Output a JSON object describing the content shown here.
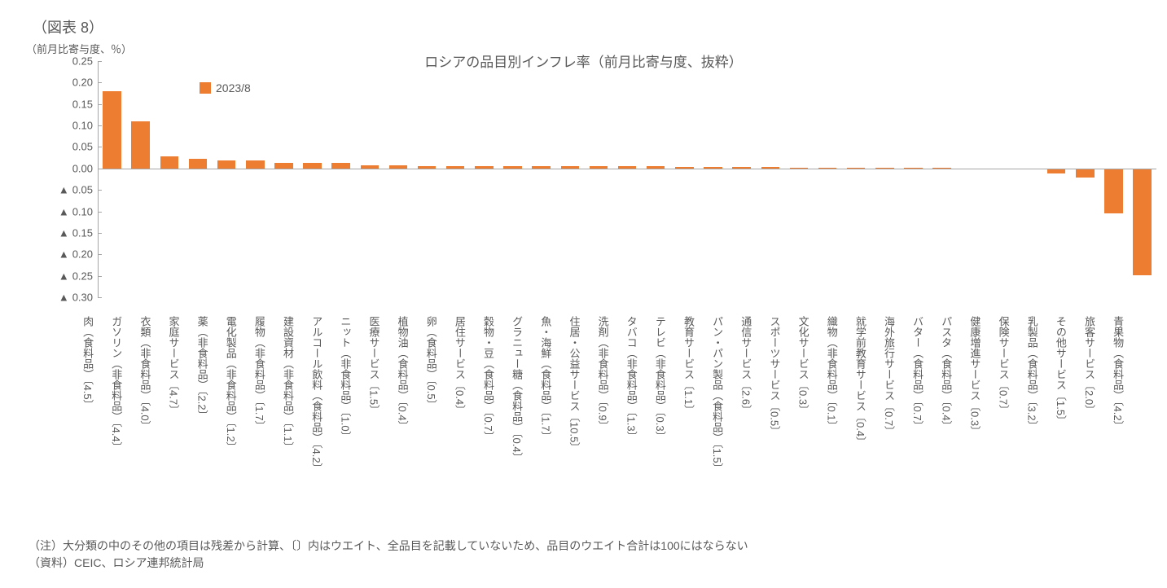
{
  "figure_label": "（図表 8）",
  "chart": {
    "type": "bar",
    "title": "ロシアの品目別インフレ率（前月比寄与度、抜粋）",
    "y_axis_title": "（前月比寄与度、％）",
    "legend_label": "2023/8",
    "bar_color": "#ed7d31",
    "background_color": "#ffffff",
    "axis_color": "#a6a6a6",
    "text_color": "#595959",
    "title_fontsize": 17,
    "label_fontsize": 13,
    "ylim": [
      -0.3,
      0.25
    ],
    "ytick_step": 0.05,
    "y_ticks": [
      {
        "v": 0.25,
        "label": "0.25",
        "neg": false
      },
      {
        "v": 0.2,
        "label": "0.20",
        "neg": false
      },
      {
        "v": 0.15,
        "label": "0.15",
        "neg": false
      },
      {
        "v": 0.1,
        "label": "0.10",
        "neg": false
      },
      {
        "v": 0.05,
        "label": "0.05",
        "neg": false
      },
      {
        "v": 0.0,
        "label": "0.00",
        "neg": false
      },
      {
        "v": -0.05,
        "label": "0.05",
        "neg": true
      },
      {
        "v": -0.1,
        "label": "0.10",
        "neg": true
      },
      {
        "v": -0.15,
        "label": "0.15",
        "neg": true
      },
      {
        "v": -0.2,
        "label": "0.20",
        "neg": true
      },
      {
        "v": -0.25,
        "label": "0.25",
        "neg": true
      },
      {
        "v": -0.3,
        "label": "0.30",
        "neg": true
      }
    ],
    "negative_marker": "▲",
    "categories": [
      {
        "label": "肉（食料品）〔4.5〕",
        "value": 0.18
      },
      {
        "label": "ガソリン（非食料品）〔4.4〕",
        "value": 0.11
      },
      {
        "label": "衣類（非食料品）〔4.0〕",
        "value": 0.028
      },
      {
        "label": "家庭サービス〔4.7〕",
        "value": 0.022
      },
      {
        "label": "薬（非食料品）〔2.2〕",
        "value": 0.018
      },
      {
        "label": "電化製品（非食料品）〔1.2〕",
        "value": 0.018
      },
      {
        "label": "履物（非食料品）〔1.7〕",
        "value": 0.012
      },
      {
        "label": "建設資材（非食料品）〔1.1〕",
        "value": 0.012
      },
      {
        "label": "アルコール飲料（食料品）〔4.2〕",
        "value": 0.012
      },
      {
        "label": "ニット（非食料品）〔1.0〕",
        "value": 0.008
      },
      {
        "label": "医療サービス〔1.5〕",
        "value": 0.008
      },
      {
        "label": "植物油（食料品）〔0.4〕",
        "value": 0.006
      },
      {
        "label": "卵（食料品）〔0.5〕",
        "value": 0.006
      },
      {
        "label": "居住サービス〔0.4〕",
        "value": 0.006
      },
      {
        "label": "穀物・豆（食料品）〔0.7〕",
        "value": 0.006
      },
      {
        "label": "グラニュー糖（食料品）〔0.4〕",
        "value": 0.005
      },
      {
        "label": "魚・海鮮（食料品）〔1.7〕",
        "value": 0.005
      },
      {
        "label": "住居・公益サービス〔10.5〕",
        "value": 0.005
      },
      {
        "label": "洗剤（非食料品）〔0.9〕",
        "value": 0.005
      },
      {
        "label": "タバコ（非食料品）〔1.3〕",
        "value": 0.005
      },
      {
        "label": "テレビ（非食料品）〔0.3〕",
        "value": 0.004
      },
      {
        "label": "教育サービス〔1.1〕",
        "value": 0.004
      },
      {
        "label": "パン・パン製品（食料品）〔1.5〕",
        "value": 0.004
      },
      {
        "label": "通信サービス〔2.6〕",
        "value": 0.003
      },
      {
        "label": "スポーツサービス〔0.5〕",
        "value": 0.002
      },
      {
        "label": "文化サービス〔0.3〕",
        "value": 0.002
      },
      {
        "label": "織物（非食料品）〔0.1〕",
        "value": 0.001
      },
      {
        "label": "就学前教育サービス〔0.4〕",
        "value": 0.001
      },
      {
        "label": "海外旅行サービス〔0.7〕",
        "value": 0.001
      },
      {
        "label": "バター（食料品）〔0.7〕",
        "value": 0.001
      },
      {
        "label": "パスタ（食料品）〔0.4〕",
        "value": 0.0005
      },
      {
        "label": "健康増進サービス〔0.3〕",
        "value": 0.0005
      },
      {
        "label": "保険サービス〔0.7〕",
        "value": -0.002
      },
      {
        "label": "乳製品（食料品）〔3.2〕",
        "value": -0.012
      },
      {
        "label": "その他サービス〔1.5〕",
        "value": -0.022
      },
      {
        "label": "旅客サービス〔2.0〕",
        "value": -0.105
      },
      {
        "label": "青果物（食料品）〔4.2〕",
        "value": -0.248
      }
    ]
  },
  "footnotes": {
    "note": "（注）大分類の中のその他の項目は残差から計算、〔〕内はウエイト、全品目を記載していないため、品目のウエイト合計は100にはならない",
    "source": "（資料）CEIC、ロシア連邦統計局"
  }
}
